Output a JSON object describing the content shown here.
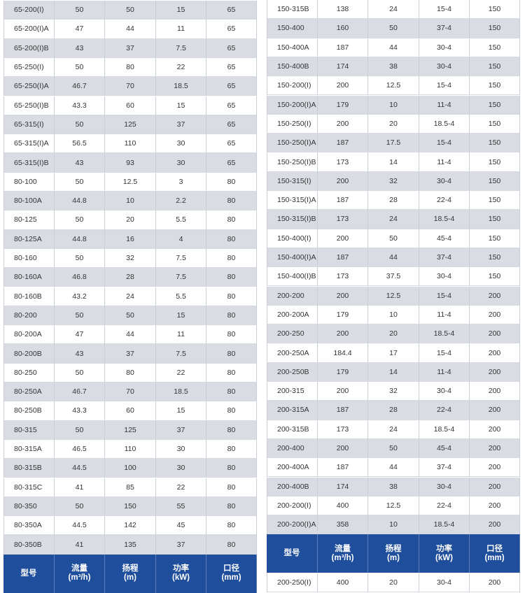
{
  "left": {
    "rows": [
      [
        "65-200(I)",
        "50",
        "50",
        "15",
        "65"
      ],
      [
        "65-200(I)A",
        "47",
        "44",
        "11",
        "65"
      ],
      [
        "65-200(I)B",
        "43",
        "37",
        "7.5",
        "65"
      ],
      [
        "65-250(I)",
        "50",
        "80",
        "22",
        "65"
      ],
      [
        "65-250(I)A",
        "46.7",
        "70",
        "18.5",
        "65"
      ],
      [
        "65-250(I)B",
        "43.3",
        "60",
        "15",
        "65"
      ],
      [
        "65-315(I)",
        "50",
        "125",
        "37",
        "65"
      ],
      [
        "65-315(I)A",
        "56.5",
        "110",
        "30",
        "65"
      ],
      [
        "65-315(I)B",
        "43",
        "93",
        "30",
        "65"
      ],
      [
        "80-100",
        "50",
        "12.5",
        "3",
        "80"
      ],
      [
        "80-100A",
        "44.8",
        "10",
        "2.2",
        "80"
      ],
      [
        "80-125",
        "50",
        "20",
        "5.5",
        "80"
      ],
      [
        "80-125A",
        "44.8",
        "16",
        "4",
        "80"
      ],
      [
        "80-160",
        "50",
        "32",
        "7.5",
        "80"
      ],
      [
        "80-160A",
        "46.8",
        "28",
        "7.5",
        "80"
      ],
      [
        "80-160B",
        "43.2",
        "24",
        "5.5",
        "80"
      ],
      [
        "80-200",
        "50",
        "50",
        "15",
        "80"
      ],
      [
        "80-200A",
        "47",
        "44",
        "11",
        "80"
      ],
      [
        "80-200B",
        "43",
        "37",
        "7.5",
        "80"
      ],
      [
        "80-250",
        "50",
        "80",
        "22",
        "80"
      ],
      [
        "80-250A",
        "46.7",
        "70",
        "18.5",
        "80"
      ],
      [
        "80-250B",
        "43.3",
        "60",
        "15",
        "80"
      ],
      [
        "80-315",
        "50",
        "125",
        "37",
        "80"
      ],
      [
        "80-315A",
        "46.5",
        "110",
        "30",
        "80"
      ],
      [
        "80-315B",
        "44.5",
        "100",
        "30",
        "80"
      ],
      [
        "80-315C",
        "41",
        "85",
        "22",
        "80"
      ],
      [
        "80-350",
        "50",
        "150",
        "55",
        "80"
      ],
      [
        "80-350A",
        "44.5",
        "142",
        "45",
        "80"
      ],
      [
        "80-350B",
        "41",
        "135",
        "37",
        "80"
      ]
    ],
    "header": [
      [
        "型号"
      ],
      [
        "流量",
        "(m³/h)"
      ],
      [
        "扬程",
        "(m)"
      ],
      [
        "功率",
        "(kW)"
      ],
      [
        "口径",
        "(mm)"
      ]
    ]
  },
  "right": {
    "rows": [
      [
        "150-315B",
        "138",
        "24",
        "15-4",
        "150"
      ],
      [
        "150-400",
        "160",
        "50",
        "37-4",
        "150"
      ],
      [
        "150-400A",
        "187",
        "44",
        "30-4",
        "150"
      ],
      [
        "150-400B",
        "174",
        "38",
        "30-4",
        "150"
      ],
      [
        "150-200(I)",
        "200",
        "12.5",
        "15-4",
        "150"
      ],
      [
        "150-200(I)A",
        "179",
        "10",
        "11-4",
        "150"
      ],
      [
        "150-250(I)",
        "200",
        "20",
        "18.5-4",
        "150"
      ],
      [
        "150-250(I)A",
        "187",
        "17.5",
        "15-4",
        "150"
      ],
      [
        "150-250(I)B",
        "173",
        "14",
        "11-4",
        "150"
      ],
      [
        "150-315(I)",
        "200",
        "32",
        "30-4",
        "150"
      ],
      [
        "150-315(I)A",
        "187",
        "28",
        "22-4",
        "150"
      ],
      [
        "150-315(I)B",
        "173",
        "24",
        "18.5-4",
        "150"
      ],
      [
        "150-400(I)",
        "200",
        "50",
        "45-4",
        "150"
      ],
      [
        "150-400(I)A",
        "187",
        "44",
        "37-4",
        "150"
      ],
      [
        "150-400(I)B",
        "173",
        "37.5",
        "30-4",
        "150"
      ],
      [
        "200-200",
        "200",
        "12.5",
        "15-4",
        "200"
      ],
      [
        "200-200A",
        "179",
        "10",
        "11-4",
        "200"
      ],
      [
        "200-250",
        "200",
        "20",
        "18.5-4",
        "200"
      ],
      [
        "200-250A",
        "184.4",
        "17",
        "15-4",
        "200"
      ],
      [
        "200-250B",
        "179",
        "14",
        "11-4",
        "200"
      ],
      [
        "200-315",
        "200",
        "32",
        "30-4",
        "200"
      ],
      [
        "200-315A",
        "187",
        "28",
        "22-4",
        "200"
      ],
      [
        "200-315B",
        "173",
        "24",
        "18.5-4",
        "200"
      ],
      [
        "200-400",
        "200",
        "50",
        "45-4",
        "200"
      ],
      [
        "200-400A",
        "187",
        "44",
        "37-4",
        "200"
      ],
      [
        "200-400B",
        "174",
        "38",
        "30-4",
        "200"
      ],
      [
        "200-200(I)",
        "400",
        "12.5",
        "22-4",
        "200"
      ],
      [
        "200-200(I)A",
        "358",
        "10",
        "18.5-4",
        "200"
      ]
    ],
    "header": [
      [
        "型号"
      ],
      [
        "流量",
        "(m³/h)"
      ],
      [
        "扬程",
        "(m)"
      ],
      [
        "功率",
        "(kW)"
      ],
      [
        "口径",
        "(mm)"
      ]
    ],
    "after_rows": [
      [
        "200-250(I)",
        "400",
        "20",
        "30-4",
        "200"
      ]
    ]
  }
}
